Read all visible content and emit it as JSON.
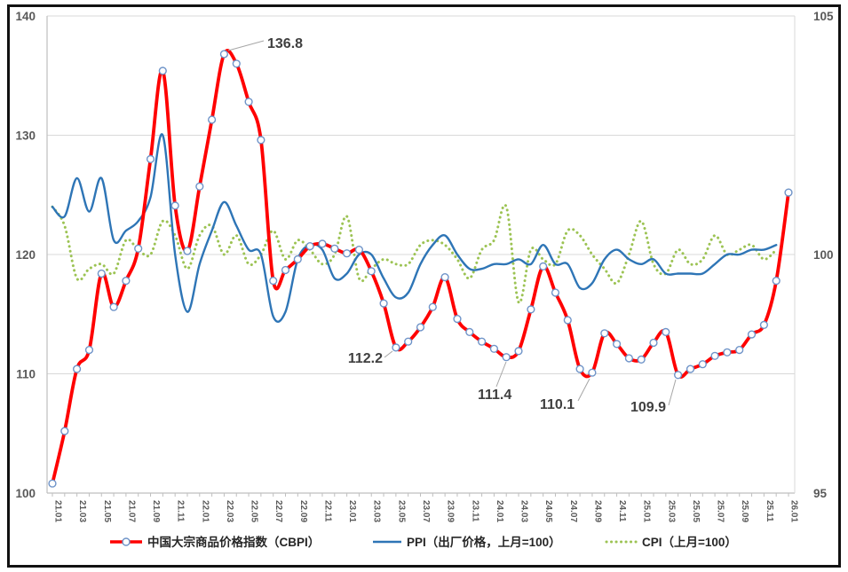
{
  "chart_data": {
    "type": "line",
    "title": "",
    "grid": "horizontal",
    "legend_position": "bottom",
    "x_categories": [
      "21.01",
      "21.02",
      "21.03",
      "21.04",
      "21.05",
      "21.06",
      "21.07",
      "21.08",
      "21.09",
      "21.10",
      "21.11",
      "21.12",
      "22.01",
      "22.02",
      "22.03",
      "22.04",
      "22.05",
      "22.06",
      "22.07",
      "22.08",
      "22.09",
      "22.10",
      "22.11",
      "22.12",
      "23.01",
      "23.02",
      "23.03",
      "23.04",
      "23.05",
      "23.06",
      "23.07",
      "23.08",
      "23.09",
      "23.10",
      "23.11",
      "23.12",
      "24.01",
      "24.02",
      "24.03",
      "24.04",
      "24.05",
      "24.06",
      "24.07",
      "24.08",
      "24.09",
      "24.10",
      "24.11",
      "24.12",
      "25.01",
      "25.02",
      "25.03",
      "25.04",
      "25.05",
      "25.06",
      "25.07",
      "25.08",
      "25.09",
      "25.10",
      "25.11",
      "25.12",
      "26.01"
    ],
    "left_axis": {
      "min": 100,
      "max": 140,
      "step": 10,
      "ticks": [
        100,
        110,
        120,
        130,
        140
      ]
    },
    "right_axis": {
      "min": 95,
      "max": 105,
      "ticks": [
        95,
        100,
        105
      ]
    },
    "series": [
      {
        "name": "中国大宗商品价格指数（CBPI）",
        "axis": "left",
        "color": "#ff0000",
        "marker_edge": "#6e93c8",
        "style": "solid-markers",
        "values": [
          100.8,
          105.2,
          110.4,
          112.0,
          118.4,
          115.6,
          117.8,
          120.5,
          128.0,
          135.4,
          124.1,
          120.3,
          125.7,
          131.3,
          136.8,
          136.0,
          132.8,
          129.6,
          117.8,
          118.7,
          119.6,
          120.7,
          120.9,
          120.5,
          120.1,
          120.4,
          118.6,
          115.9,
          112.2,
          112.7,
          113.9,
          115.6,
          118.1,
          114.6,
          113.5,
          112.7,
          112.1,
          111.4,
          111.9,
          115.4,
          119.0,
          116.8,
          114.5,
          110.4,
          110.1,
          113.4,
          112.5,
          111.3,
          111.2,
          112.6,
          113.5,
          109.9,
          110.4,
          110.8,
          111.5,
          111.8,
          112.0,
          113.3,
          114.1,
          117.8,
          125.2
        ]
      },
      {
        "name": "PPI（出厂价格，上月=100）",
        "axis": "right",
        "color": "#2e75b6",
        "style": "solid",
        "values": [
          101.0,
          100.8,
          101.6,
          100.9,
          101.6,
          100.3,
          100.5,
          100.7,
          101.2,
          102.5,
          100.0,
          98.8,
          99.8,
          100.5,
          101.1,
          100.6,
          100.1,
          100.0,
          98.7,
          98.8,
          99.9,
          100.2,
          100.1,
          99.5,
          99.6,
          100.0,
          100.0,
          99.5,
          99.1,
          99.2,
          99.8,
          100.2,
          100.4,
          100.0,
          99.7,
          99.7,
          99.8,
          99.8,
          99.9,
          99.8,
          100.2,
          99.8,
          99.8,
          99.3,
          99.4,
          99.9,
          100.1,
          99.9,
          99.8,
          99.9,
          99.6,
          99.6,
          99.6,
          99.6,
          99.8,
          100.0,
          100.0,
          100.1,
          100.1,
          100.2
        ]
      },
      {
        "name": "CPI（上月=100）",
        "axis": "right",
        "color": "#9cc353",
        "style": "dotted",
        "values": [
          101.0,
          100.6,
          99.5,
          99.7,
          99.8,
          99.6,
          100.3,
          100.1,
          100.0,
          100.7,
          100.4,
          99.7,
          100.4,
          100.6,
          100.0,
          100.4,
          99.8,
          100.0,
          100.5,
          99.9,
          100.3,
          100.1,
          99.8,
          100.0,
          100.8,
          99.5,
          99.7,
          99.9,
          99.8,
          99.8,
          100.2,
          100.3,
          100.2,
          99.9,
          99.5,
          100.1,
          100.3,
          101.0,
          99.0,
          100.1,
          99.9,
          99.8,
          100.5,
          100.4,
          100.0,
          99.7,
          99.4,
          100.0,
          100.7,
          99.8,
          99.6,
          100.1,
          99.8,
          99.9,
          100.4,
          100.0,
          100.1,
          100.2,
          99.9,
          100.1
        ]
      }
    ],
    "annotations": [
      {
        "text": "136.8",
        "month": "22.03",
        "value": 136.8
      },
      {
        "text": "112.2",
        "month": "23.05",
        "value": 112.2
      },
      {
        "text": "111.4",
        "month": "24.02",
        "value": 111.4
      },
      {
        "text": "110.1",
        "month": "24.09",
        "value": 110.1
      },
      {
        "text": "109.9",
        "month": "25.04",
        "value": 109.9
      }
    ]
  }
}
